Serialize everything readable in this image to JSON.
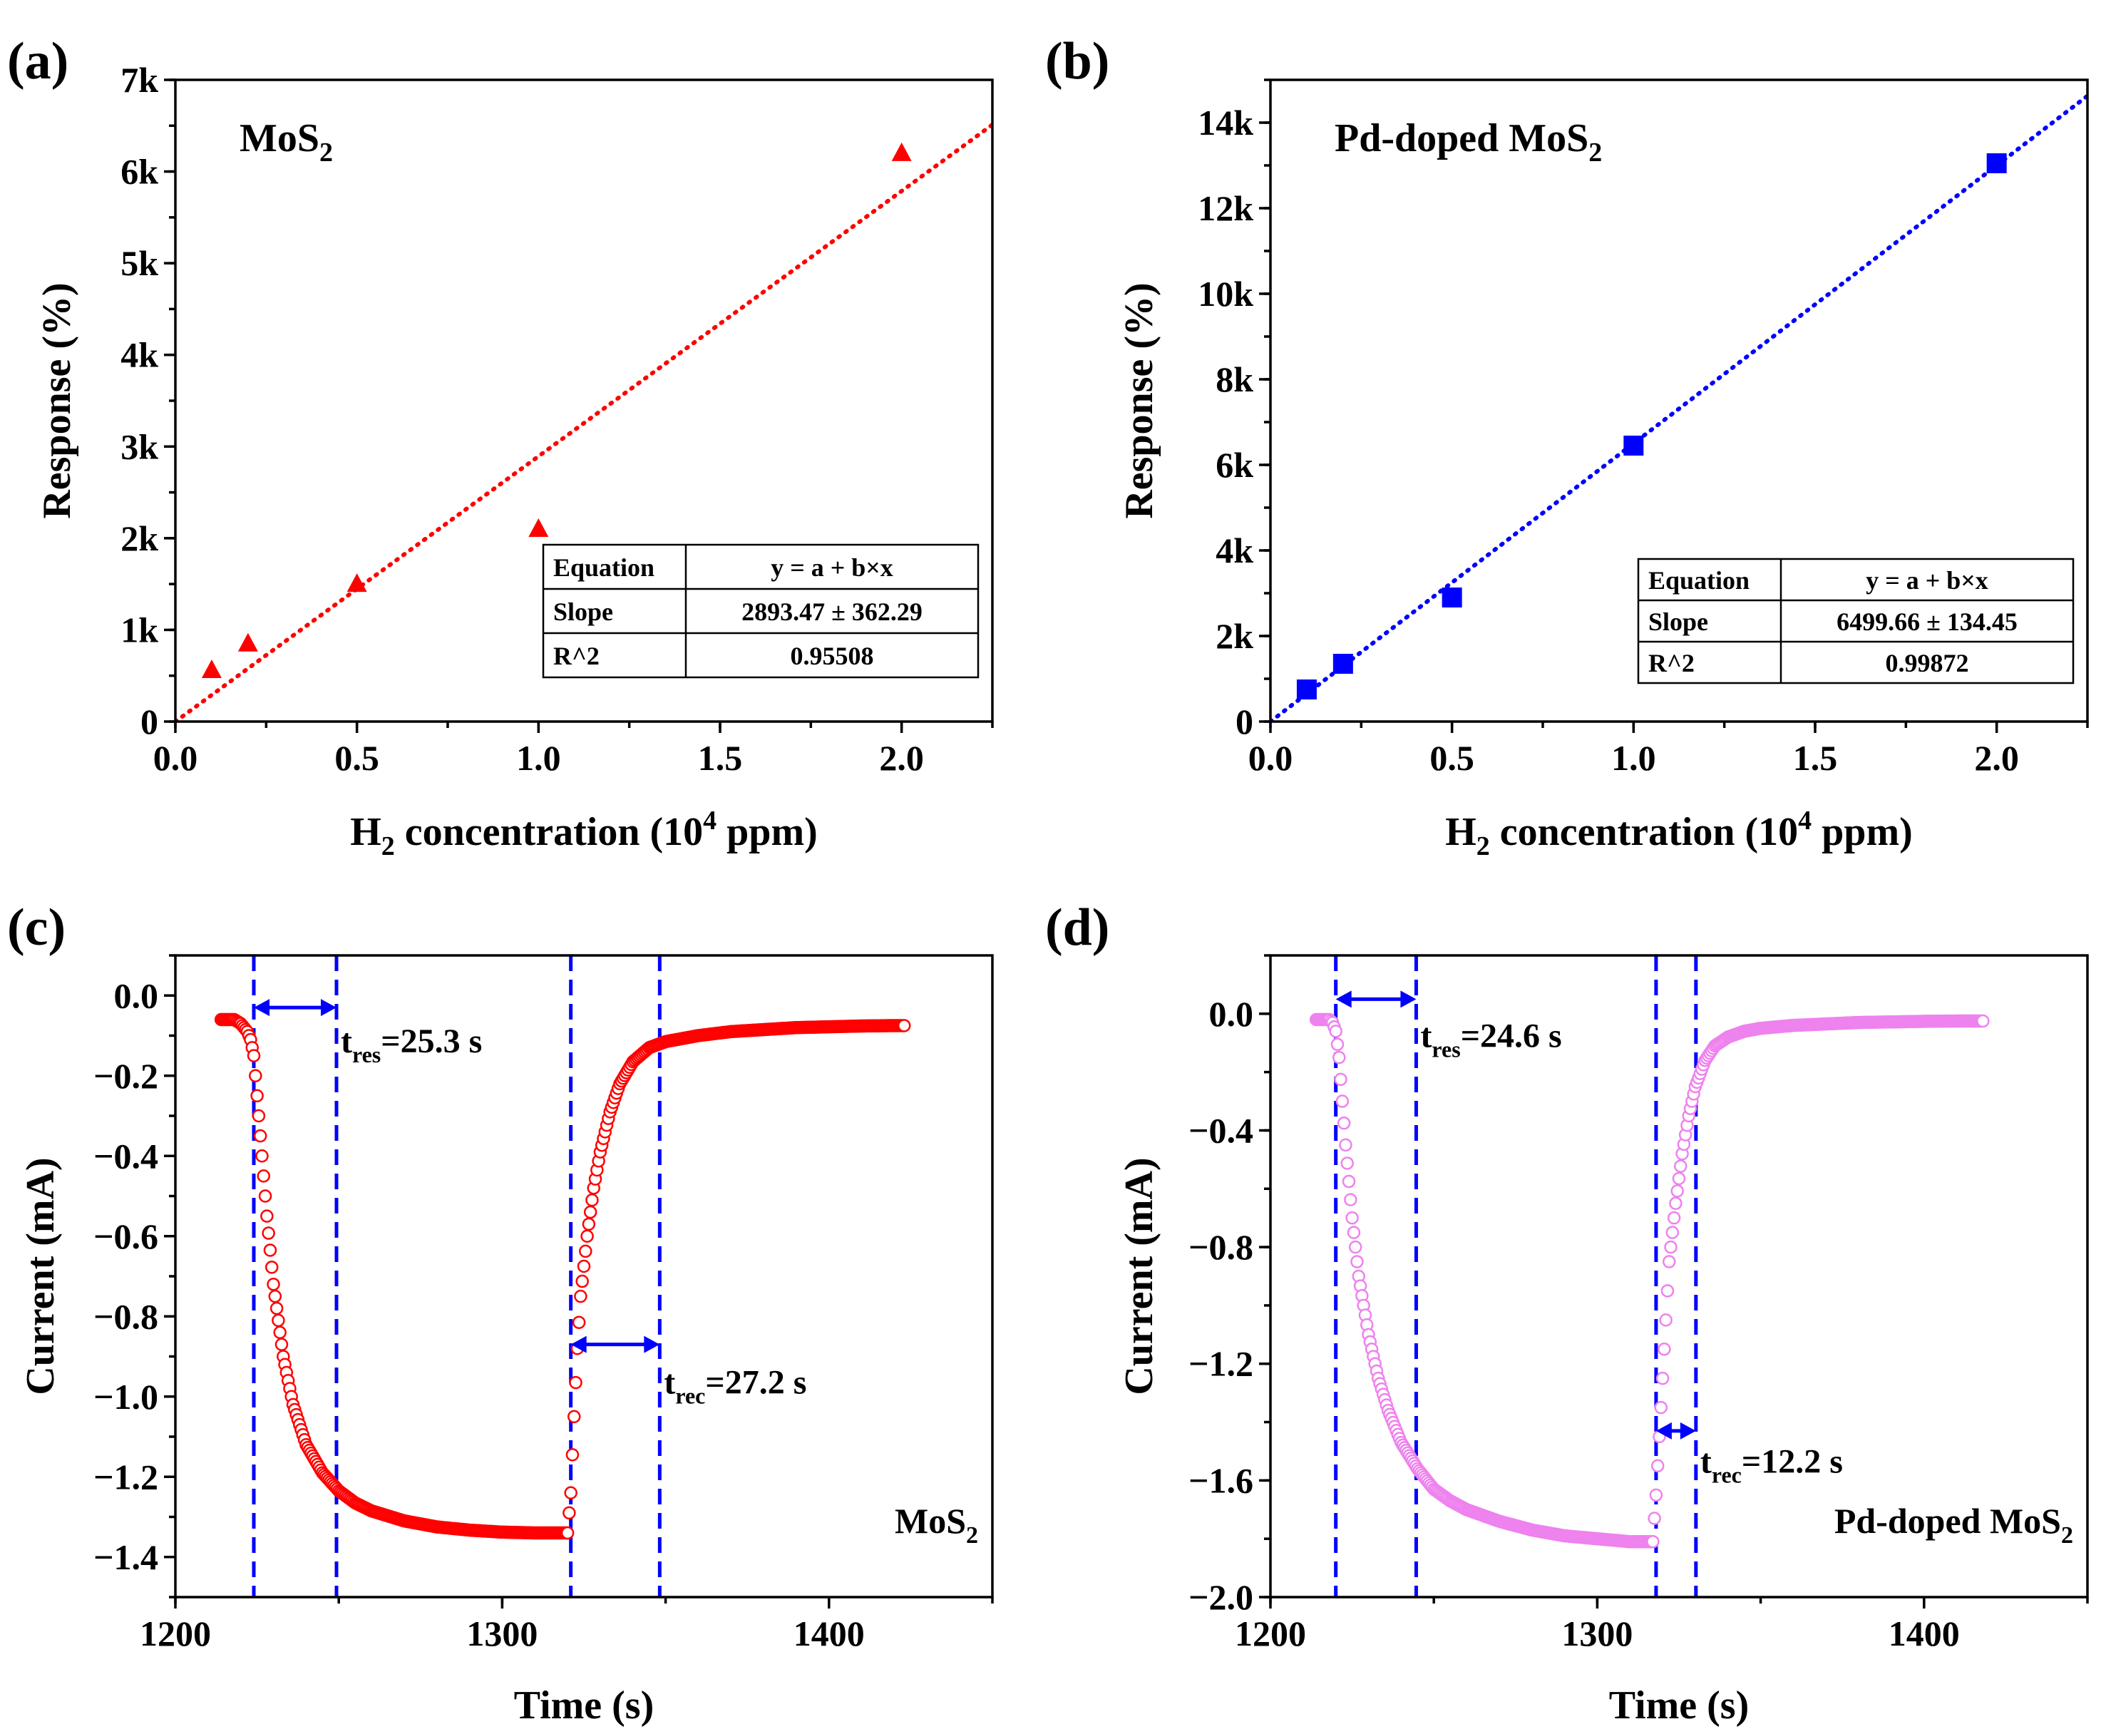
{
  "colors": {
    "mos2": "#ff0000",
    "pd_mos2_fit": "#0000ff",
    "pd_mos2_time": "#ee82ee",
    "guide": "#0000ff"
  },
  "chart_data": [
    {
      "type": "scatter",
      "panel": "(a)",
      "sample_label": {
        "main": "MoS",
        "sub": "2"
      },
      "xlabel": {
        "prefix": "H",
        "sub": "2",
        "middle": " concentration (10",
        "sup": "4",
        "suffix": " ppm)"
      },
      "ylabel": "Response (%)",
      "xlim": [
        0,
        2.25
      ],
      "ylim": [
        0,
        7000
      ],
      "xticks": [
        0.0,
        0.5,
        1.0,
        1.5,
        2.0
      ],
      "xtick_labels": [
        "0.0",
        "0.5",
        "1.0",
        "1.5",
        "2.0"
      ],
      "yticks": [
        0,
        1000,
        2000,
        3000,
        4000,
        5000,
        6000,
        7000
      ],
      "ytick_labels": [
        "0",
        "1k",
        "2k",
        "3k",
        "4k",
        "5k",
        "6k",
        "7k"
      ],
      "marker": "triangle",
      "x": [
        0.1,
        0.2,
        0.5,
        1.0,
        2.0
      ],
      "y": [
        560,
        850,
        1500,
        2100,
        6200
      ],
      "fit": {
        "intercept": 0,
        "slope": 2893.47,
        "style": "dotted"
      },
      "fit_table": [
        [
          "Equation",
          "y = a + b×x"
        ],
        [
          "Slope",
          "2893.47 ± 362.29"
        ],
        [
          "R^2",
          "0.95508"
        ]
      ],
      "grid": false
    },
    {
      "type": "scatter",
      "panel": "(b)",
      "sample_label": {
        "main": "Pd-doped MoS",
        "sub": "2"
      },
      "xlabel": {
        "prefix": "H",
        "sub": "2",
        "middle": " concentration (10",
        "sup": "4",
        "suffix": " ppm)"
      },
      "ylabel": "Response (%)",
      "xlim": [
        0,
        2.25
      ],
      "ylim": [
        0,
        15000
      ],
      "xticks": [
        0.0,
        0.5,
        1.0,
        1.5,
        2.0
      ],
      "xtick_labels": [
        "0.0",
        "0.5",
        "1.0",
        "1.5",
        "2.0"
      ],
      "yticks": [
        0,
        2000,
        4000,
        6000,
        8000,
        10000,
        12000,
        14000
      ],
      "ytick_labels": [
        "0",
        "2k",
        "4k",
        "6k",
        "8k",
        "10k",
        "12k",
        "14k"
      ],
      "marker": "square",
      "x": [
        0.1,
        0.2,
        0.5,
        1.0,
        2.0
      ],
      "y": [
        750,
        1350,
        2900,
        6450,
        13050
      ],
      "fit": {
        "intercept": 0,
        "slope": 6499.66,
        "style": "dotted"
      },
      "fit_table": [
        [
          "Equation",
          "y = a + b×x"
        ],
        [
          "Slope",
          "6499.66 ± 134.45"
        ],
        [
          "R^2",
          "0.99872"
        ]
      ],
      "grid": false
    },
    {
      "type": "line",
      "panel": "(c)",
      "sample_label": {
        "main": "MoS",
        "sub": "2"
      },
      "xlabel": "Time (s)",
      "ylabel": "Current (mA)",
      "xlim": [
        1200,
        1450
      ],
      "ylim": [
        -1.5,
        0.1
      ],
      "xticks": [
        1200,
        1300,
        1400
      ],
      "xtick_labels": [
        "1200",
        "1300",
        "1400"
      ],
      "yticks": [
        0.0,
        -0.2,
        -0.4,
        -0.6,
        -0.8,
        -1.0,
        -1.2,
        -1.4
      ],
      "ytick_labels": [
        "0.0",
        "−0.2",
        "−0.4",
        "−0.6",
        "−0.8",
        "−1.0",
        "−1.2",
        "−1.4"
      ],
      "marker": "open-circle",
      "series": [
        {
          "x": [
            1214,
            1216,
            1218,
            1220,
            1221,
            1222,
            1223,
            1224,
            1226,
            1228,
            1230,
            1233,
            1236,
            1240,
            1245,
            1250,
            1255,
            1260,
            1270,
            1280,
            1290,
            1300,
            1310,
            1320,
            1321,
            1322,
            1323,
            1324,
            1326,
            1328,
            1330,
            1333,
            1336,
            1340,
            1345,
            1350,
            1360,
            1370,
            1380,
            1390,
            1400,
            1410,
            1420,
            1423
          ],
          "y": [
            -0.06,
            -0.06,
            -0.06,
            -0.07,
            -0.08,
            -0.09,
            -0.11,
            -0.15,
            -0.35,
            -0.55,
            -0.72,
            -0.9,
            -1.02,
            -1.12,
            -1.19,
            -1.235,
            -1.265,
            -1.285,
            -1.31,
            -1.325,
            -1.333,
            -1.338,
            -1.34,
            -1.34,
            -1.24,
            -1.05,
            -0.88,
            -0.75,
            -0.6,
            -0.48,
            -0.39,
            -0.29,
            -0.22,
            -0.165,
            -0.13,
            -0.115,
            -0.1,
            -0.09,
            -0.085,
            -0.08,
            -0.078,
            -0.076,
            -0.075,
            -0.075
          ]
        }
      ],
      "guides": [
        1224,
        1249.3,
        1321,
        1348.2
      ],
      "annotations": [
        {
          "main": "t",
          "sub": "res",
          "text": "=25.3 s",
          "at_x": 1249.3,
          "arrow_from": 1224,
          "arrow_to": 1249.3,
          "arrow_y": -0.03,
          "label_y": -0.11
        },
        {
          "main": "t",
          "sub": "rec",
          "text": "=27.2 s",
          "at_x": 1348.2,
          "arrow_from": 1321,
          "arrow_to": 1348.2,
          "arrow_y": -0.87,
          "label_y": -0.96
        }
      ],
      "grid": false
    },
    {
      "type": "line",
      "panel": "(d)",
      "sample_label": {
        "main": "Pd-doped MoS",
        "sub": "2"
      },
      "xlabel": "Time (s)",
      "ylabel": "Current (mA)",
      "xlim": [
        1200,
        1450
      ],
      "ylim": [
        -2.0,
        0.2
      ],
      "xticks": [
        1200,
        1300,
        1400
      ],
      "xtick_labels": [
        "1200",
        "1300",
        "1400"
      ],
      "yticks": [
        0.0,
        -0.4,
        -0.8,
        -1.2,
        -1.6,
        -2.0
      ],
      "ytick_labels": [
        "0.0",
        "−0.4",
        "−0.8",
        "−1.2",
        "−1.6",
        "−2.0"
      ],
      "marker": "open-circle",
      "series": [
        {
          "x": [
            1214,
            1216,
            1218,
            1219,
            1220,
            1221,
            1222,
            1223,
            1225,
            1227,
            1230,
            1233,
            1236,
            1240,
            1245,
            1250,
            1255,
            1260,
            1270,
            1280,
            1290,
            1300,
            1310,
            1317,
            1318,
            1319,
            1320,
            1321,
            1322,
            1324,
            1326,
            1328,
            1330,
            1333,
            1336,
            1340,
            1345,
            1350,
            1360,
            1370,
            1380,
            1390,
            1400,
            1410,
            1418
          ],
          "y": [
            -0.02,
            -0.02,
            -0.02,
            -0.03,
            -0.06,
            -0.15,
            -0.3,
            -0.45,
            -0.7,
            -0.9,
            -1.1,
            -1.25,
            -1.36,
            -1.47,
            -1.56,
            -1.63,
            -1.67,
            -1.7,
            -1.74,
            -1.77,
            -1.79,
            -1.8,
            -1.81,
            -1.81,
            -1.65,
            -1.45,
            -1.25,
            -1.05,
            -0.85,
            -0.65,
            -0.48,
            -0.35,
            -0.25,
            -0.16,
            -0.11,
            -0.08,
            -0.06,
            -0.05,
            -0.04,
            -0.035,
            -0.03,
            -0.028,
            -0.026,
            -0.025,
            -0.025
          ]
        }
      ],
      "guides": [
        1220,
        1244.6,
        1318,
        1330.2
      ],
      "annotations": [
        {
          "main": "t",
          "sub": "res",
          "text": "=24.6 s",
          "at_x": 1244.6,
          "arrow_from": 1220,
          "arrow_to": 1244.6,
          "arrow_y": 0.05,
          "label_y": -0.07
        },
        {
          "main": "t",
          "sub": "rec",
          "text": "=12.2 s",
          "at_x": 1330.2,
          "arrow_from": 1318,
          "arrow_to": 1330.2,
          "arrow_y": -1.43,
          "label_y": -1.53
        }
      ],
      "grid": false
    }
  ]
}
